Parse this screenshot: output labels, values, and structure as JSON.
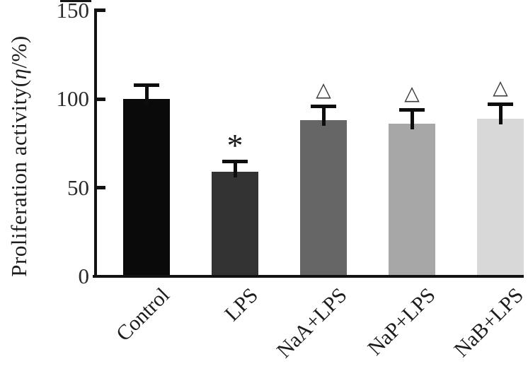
{
  "figure": {
    "background": "#ffffff",
    "text_color": "#1c1c1c",
    "axis_color": "#121212"
  },
  "chart_data": {
    "type": "bar",
    "ylabel": "Proliferation activity(η/%)",
    "ylabel_parts": {
      "prefix": "Proliferation activity(",
      "symbol": "η",
      "suffix": "/%)"
    },
    "xlabel": "",
    "categories": [
      "Control",
      "LPS",
      "NaA+LPS",
      "NaP+LPS",
      "NaB+LPS"
    ],
    "values": [
      100,
      59,
      88,
      86,
      89
    ],
    "errors": [
      9,
      7,
      9,
      9,
      9
    ],
    "annotations": [
      "",
      "*",
      "△",
      "△",
      "△"
    ],
    "bar_colors": [
      "#0a0a0a",
      "#333333",
      "#666666",
      "#a7a7a7",
      "#d8d8d8"
    ],
    "error_bar_color": "#0d0d0d",
    "yticks": [
      0,
      50,
      100,
      150
    ],
    "ylim": [
      0,
      150
    ],
    "grid": false,
    "legend": null,
    "xtick_rotation_deg": 45
  }
}
